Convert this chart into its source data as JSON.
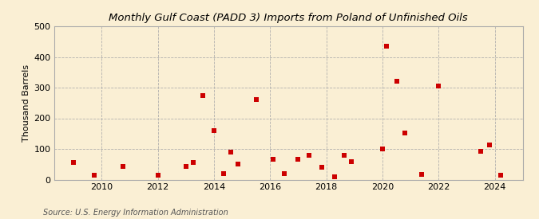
{
  "title": "Monthly Gulf Coast (PADD 3) Imports from Poland of Unfinished Oils",
  "ylabel": "Thousand Barrels",
  "source": "Source: U.S. Energy Information Administration",
  "background_color": "#faefd4",
  "plot_bg_color": "#faefd4",
  "marker_color": "#cc0000",
  "ylim": [
    0,
    500
  ],
  "yticks": [
    0,
    100,
    200,
    300,
    400,
    500
  ],
  "xticks": [
    2010,
    2012,
    2014,
    2016,
    2018,
    2020,
    2022,
    2024
  ],
  "xlim": [
    2008.3,
    2025.0
  ],
  "data_points": [
    [
      2009.0,
      57
    ],
    [
      2009.75,
      14
    ],
    [
      2010.75,
      43
    ],
    [
      2012.0,
      14
    ],
    [
      2013.0,
      43
    ],
    [
      2013.25,
      57
    ],
    [
      2013.6,
      275
    ],
    [
      2014.0,
      160
    ],
    [
      2014.35,
      20
    ],
    [
      2014.6,
      90
    ],
    [
      2014.85,
      50
    ],
    [
      2015.5,
      260
    ],
    [
      2016.1,
      65
    ],
    [
      2016.5,
      20
    ],
    [
      2017.0,
      65
    ],
    [
      2017.4,
      78
    ],
    [
      2017.85,
      40
    ],
    [
      2018.3,
      8
    ],
    [
      2018.65,
      80
    ],
    [
      2018.9,
      58
    ],
    [
      2020.0,
      100
    ],
    [
      2020.15,
      435
    ],
    [
      2020.5,
      320
    ],
    [
      2020.8,
      152
    ],
    [
      2021.4,
      18
    ],
    [
      2022.0,
      305
    ],
    [
      2023.5,
      93
    ],
    [
      2023.8,
      112
    ],
    [
      2024.2,
      14
    ]
  ]
}
